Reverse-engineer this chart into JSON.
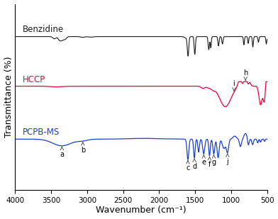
{
  "xlabel": "Wavenumber (cm⁻¹)",
  "ylabel": "Transmittance (%)",
  "background_color": "#ffffff",
  "labels": {
    "benzidine": "Benzidine",
    "hccp": "HCCP",
    "pcpb": "PCPB-MS"
  },
  "colors": {
    "benzidine": "#1a1a1a",
    "hccp": "#e8003a",
    "pcpb": "#1a3fcc"
  },
  "offsets": {
    "benzidine": 0.72,
    "hccp": 0.42,
    "pcpb": 0.12
  }
}
